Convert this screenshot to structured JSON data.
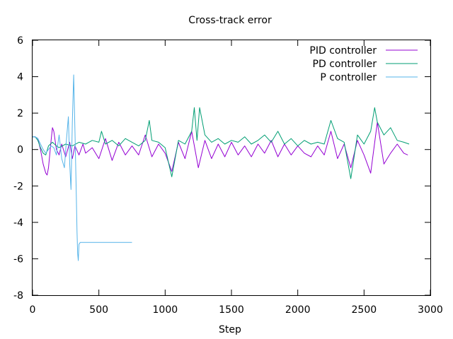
{
  "chart_data": {
    "type": "line",
    "title": "Cross-track error",
    "xlabel": "Step",
    "ylabel": "",
    "xlim": [
      0,
      3000
    ],
    "ylim": [
      -8,
      6
    ],
    "xticks": [
      0,
      500,
      1000,
      1500,
      2000,
      2500,
      3000
    ],
    "yticks": [
      6,
      4,
      2,
      0,
      -2,
      -4,
      -6,
      -8
    ],
    "xtick_labels": [
      "0",
      "500",
      "1000",
      "1500",
      "2000",
      "2500",
      "3000"
    ],
    "ytick_labels": [
      "6",
      "4",
      "2",
      "0",
      "-2",
      "-4",
      "-6",
      "-8"
    ],
    "grid": false,
    "legend_position": "top-right",
    "series": [
      {
        "name": "PID controller",
        "color": "#9400d3",
        "x": [
          0,
          20,
          40,
          60,
          80,
          100,
          110,
          120,
          140,
          150,
          160,
          180,
          200,
          220,
          250,
          280,
          300,
          320,
          350,
          380,
          400,
          450,
          500,
          550,
          600,
          650,
          700,
          750,
          800,
          850,
          900,
          950,
          1000,
          1050,
          1100,
          1150,
          1200,
          1250,
          1300,
          1350,
          1400,
          1450,
          1500,
          1550,
          1600,
          1650,
          1700,
          1750,
          1800,
          1850,
          1900,
          1950,
          2000,
          2050,
          2100,
          2150,
          2200,
          2250,
          2300,
          2350,
          2400,
          2450,
          2500,
          2550,
          2600,
          2650,
          2700,
          2750,
          2800,
          2830
        ],
        "y": [
          0.7,
          0.7,
          0.6,
          0.0,
          -0.8,
          -1.3,
          -1.4,
          -1.0,
          0.5,
          1.2,
          1.0,
          0.0,
          -0.3,
          0.3,
          -0.4,
          0.4,
          -0.5,
          0.2,
          -0.3,
          0.3,
          -0.2,
          0.1,
          -0.5,
          0.6,
          -0.6,
          0.4,
          -0.3,
          0.2,
          -0.3,
          0.8,
          -0.4,
          0.3,
          -0.2,
          -1.2,
          0.4,
          -0.5,
          1.0,
          -1.0,
          0.5,
          -0.5,
          0.3,
          -0.4,
          0.4,
          -0.3,
          0.2,
          -0.4,
          0.3,
          -0.2,
          0.5,
          -0.4,
          0.3,
          -0.3,
          0.2,
          -0.2,
          -0.4,
          0.2,
          -0.3,
          1.0,
          -0.5,
          0.3,
          -1.0,
          0.5,
          -0.3,
          -1.3,
          1.5,
          -0.8,
          -0.2,
          0.3,
          -0.2,
          -0.3
        ]
      },
      {
        "name": "PD controller",
        "color": "#009e73",
        "x": [
          0,
          20,
          40,
          60,
          80,
          100,
          120,
          150,
          180,
          200,
          250,
          300,
          350,
          400,
          450,
          500,
          520,
          550,
          600,
          650,
          700,
          750,
          800,
          850,
          880,
          900,
          950,
          1000,
          1050,
          1100,
          1150,
          1200,
          1220,
          1240,
          1260,
          1300,
          1350,
          1400,
          1450,
          1500,
          1550,
          1600,
          1650,
          1700,
          1750,
          1800,
          1850,
          1900,
          1950,
          2000,
          2050,
          2100,
          2150,
          2200,
          2250,
          2300,
          2350,
          2400,
          2450,
          2500,
          2550,
          2580,
          2600,
          2650,
          2700,
          2750,
          2800,
          2840
        ],
        "y": [
          0.7,
          0.7,
          0.5,
          0.1,
          -0.2,
          -0.3,
          0.2,
          0.4,
          0.2,
          0.1,
          0.3,
          0.2,
          0.4,
          0.3,
          0.5,
          0.4,
          1.0,
          0.3,
          0.5,
          0.2,
          0.6,
          0.4,
          0.2,
          0.5,
          1.6,
          0.5,
          0.4,
          0.1,
          -1.5,
          0.5,
          0.3,
          1.0,
          2.3,
          0.5,
          2.3,
          0.8,
          0.4,
          0.6,
          0.3,
          0.5,
          0.4,
          0.7,
          0.3,
          0.5,
          0.8,
          0.4,
          1.0,
          0.3,
          0.6,
          0.2,
          0.5,
          0.3,
          0.4,
          0.3,
          1.6,
          0.6,
          0.4,
          -1.6,
          0.8,
          0.3,
          1.0,
          2.3,
          1.5,
          0.8,
          1.2,
          0.5,
          0.4,
          0.3
        ]
      },
      {
        "name": "P controller",
        "color": "#56b4e9",
        "x": [
          0,
          20,
          40,
          60,
          80,
          100,
          120,
          140,
          160,
          180,
          200,
          220,
          240,
          255,
          270,
          280,
          290,
          300,
          310,
          320,
          330,
          335,
          340,
          345,
          350,
          360,
          380,
          400,
          500,
          600,
          700,
          750
        ],
        "y": [
          0.7,
          0.7,
          0.6,
          0.3,
          0.0,
          -0.2,
          0.0,
          0.2,
          0.1,
          -0.3,
          0.8,
          -0.5,
          -1.0,
          0.5,
          1.8,
          -0.8,
          -2.2,
          1.5,
          4.1,
          1.0,
          -2.5,
          -4.5,
          -5.7,
          -6.1,
          -5.2,
          -5.1,
          -5.1,
          -5.1,
          -5.1,
          -5.1,
          -5.1,
          -5.1
        ]
      }
    ]
  }
}
